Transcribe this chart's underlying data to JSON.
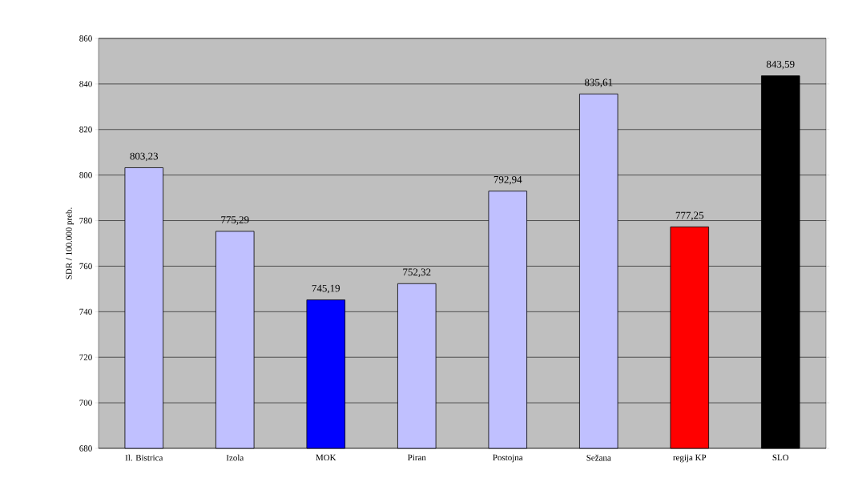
{
  "chart_data": {
    "type": "bar",
    "ylabel": "SDR / 100.000 preb.",
    "categories": [
      "Il. Bistrica",
      "Izola",
      "MOK",
      "Piran",
      "Postojna",
      "Sežana",
      "regija KP",
      "SLO"
    ],
    "values": [
      803.23,
      775.29,
      745.19,
      752.32,
      792.94,
      835.61,
      777.25,
      843.59
    ],
    "value_labels": [
      "803,23",
      "775,29",
      "745,19",
      "752,32",
      "792,94",
      "835,61",
      "777,25",
      "843,59"
    ],
    "colors": [
      "#c0c0ff",
      "#c0c0ff",
      "#0000ff",
      "#c0c0ff",
      "#c0c0ff",
      "#c0c0ff",
      "#ff0000",
      "#000000"
    ],
    "ylim": [
      680,
      860
    ],
    "yticks": [
      680,
      700,
      720,
      740,
      760,
      780,
      800,
      820,
      840,
      860
    ],
    "grid": "y"
  }
}
